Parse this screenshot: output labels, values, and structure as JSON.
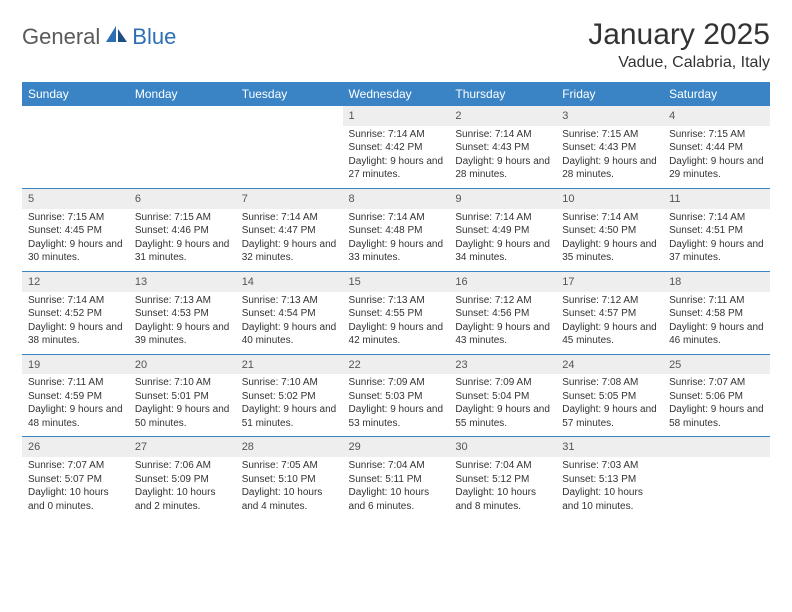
{
  "brand": {
    "part1": "General",
    "part2": "Blue"
  },
  "title": "January 2025",
  "location": "Vadue, Calabria, Italy",
  "colors": {
    "header_bg": "#3a84c5",
    "header_text": "#ffffff",
    "daynum_bg": "#eeeeee",
    "row_border": "#3a84c5",
    "text": "#333333",
    "logo_gray": "#5a5a5a",
    "logo_blue": "#2d6fb5"
  },
  "weekdays": [
    "Sunday",
    "Monday",
    "Tuesday",
    "Wednesday",
    "Thursday",
    "Friday",
    "Saturday"
  ],
  "weeks": [
    [
      null,
      null,
      null,
      {
        "n": "1",
        "sr": "Sunrise: 7:14 AM",
        "ss": "Sunset: 4:42 PM",
        "dl": "Daylight: 9 hours and 27 minutes."
      },
      {
        "n": "2",
        "sr": "Sunrise: 7:14 AM",
        "ss": "Sunset: 4:43 PM",
        "dl": "Daylight: 9 hours and 28 minutes."
      },
      {
        "n": "3",
        "sr": "Sunrise: 7:15 AM",
        "ss": "Sunset: 4:43 PM",
        "dl": "Daylight: 9 hours and 28 minutes."
      },
      {
        "n": "4",
        "sr": "Sunrise: 7:15 AM",
        "ss": "Sunset: 4:44 PM",
        "dl": "Daylight: 9 hours and 29 minutes."
      }
    ],
    [
      {
        "n": "5",
        "sr": "Sunrise: 7:15 AM",
        "ss": "Sunset: 4:45 PM",
        "dl": "Daylight: 9 hours and 30 minutes."
      },
      {
        "n": "6",
        "sr": "Sunrise: 7:15 AM",
        "ss": "Sunset: 4:46 PM",
        "dl": "Daylight: 9 hours and 31 minutes."
      },
      {
        "n": "7",
        "sr": "Sunrise: 7:14 AM",
        "ss": "Sunset: 4:47 PM",
        "dl": "Daylight: 9 hours and 32 minutes."
      },
      {
        "n": "8",
        "sr": "Sunrise: 7:14 AM",
        "ss": "Sunset: 4:48 PM",
        "dl": "Daylight: 9 hours and 33 minutes."
      },
      {
        "n": "9",
        "sr": "Sunrise: 7:14 AM",
        "ss": "Sunset: 4:49 PM",
        "dl": "Daylight: 9 hours and 34 minutes."
      },
      {
        "n": "10",
        "sr": "Sunrise: 7:14 AM",
        "ss": "Sunset: 4:50 PM",
        "dl": "Daylight: 9 hours and 35 minutes."
      },
      {
        "n": "11",
        "sr": "Sunrise: 7:14 AM",
        "ss": "Sunset: 4:51 PM",
        "dl": "Daylight: 9 hours and 37 minutes."
      }
    ],
    [
      {
        "n": "12",
        "sr": "Sunrise: 7:14 AM",
        "ss": "Sunset: 4:52 PM",
        "dl": "Daylight: 9 hours and 38 minutes."
      },
      {
        "n": "13",
        "sr": "Sunrise: 7:13 AM",
        "ss": "Sunset: 4:53 PM",
        "dl": "Daylight: 9 hours and 39 minutes."
      },
      {
        "n": "14",
        "sr": "Sunrise: 7:13 AM",
        "ss": "Sunset: 4:54 PM",
        "dl": "Daylight: 9 hours and 40 minutes."
      },
      {
        "n": "15",
        "sr": "Sunrise: 7:13 AM",
        "ss": "Sunset: 4:55 PM",
        "dl": "Daylight: 9 hours and 42 minutes."
      },
      {
        "n": "16",
        "sr": "Sunrise: 7:12 AM",
        "ss": "Sunset: 4:56 PM",
        "dl": "Daylight: 9 hours and 43 minutes."
      },
      {
        "n": "17",
        "sr": "Sunrise: 7:12 AM",
        "ss": "Sunset: 4:57 PM",
        "dl": "Daylight: 9 hours and 45 minutes."
      },
      {
        "n": "18",
        "sr": "Sunrise: 7:11 AM",
        "ss": "Sunset: 4:58 PM",
        "dl": "Daylight: 9 hours and 46 minutes."
      }
    ],
    [
      {
        "n": "19",
        "sr": "Sunrise: 7:11 AM",
        "ss": "Sunset: 4:59 PM",
        "dl": "Daylight: 9 hours and 48 minutes."
      },
      {
        "n": "20",
        "sr": "Sunrise: 7:10 AM",
        "ss": "Sunset: 5:01 PM",
        "dl": "Daylight: 9 hours and 50 minutes."
      },
      {
        "n": "21",
        "sr": "Sunrise: 7:10 AM",
        "ss": "Sunset: 5:02 PM",
        "dl": "Daylight: 9 hours and 51 minutes."
      },
      {
        "n": "22",
        "sr": "Sunrise: 7:09 AM",
        "ss": "Sunset: 5:03 PM",
        "dl": "Daylight: 9 hours and 53 minutes."
      },
      {
        "n": "23",
        "sr": "Sunrise: 7:09 AM",
        "ss": "Sunset: 5:04 PM",
        "dl": "Daylight: 9 hours and 55 minutes."
      },
      {
        "n": "24",
        "sr": "Sunrise: 7:08 AM",
        "ss": "Sunset: 5:05 PM",
        "dl": "Daylight: 9 hours and 57 minutes."
      },
      {
        "n": "25",
        "sr": "Sunrise: 7:07 AM",
        "ss": "Sunset: 5:06 PM",
        "dl": "Daylight: 9 hours and 58 minutes."
      }
    ],
    [
      {
        "n": "26",
        "sr": "Sunrise: 7:07 AM",
        "ss": "Sunset: 5:07 PM",
        "dl": "Daylight: 10 hours and 0 minutes."
      },
      {
        "n": "27",
        "sr": "Sunrise: 7:06 AM",
        "ss": "Sunset: 5:09 PM",
        "dl": "Daylight: 10 hours and 2 minutes."
      },
      {
        "n": "28",
        "sr": "Sunrise: 7:05 AM",
        "ss": "Sunset: 5:10 PM",
        "dl": "Daylight: 10 hours and 4 minutes."
      },
      {
        "n": "29",
        "sr": "Sunrise: 7:04 AM",
        "ss": "Sunset: 5:11 PM",
        "dl": "Daylight: 10 hours and 6 minutes."
      },
      {
        "n": "30",
        "sr": "Sunrise: 7:04 AM",
        "ss": "Sunset: 5:12 PM",
        "dl": "Daylight: 10 hours and 8 minutes."
      },
      {
        "n": "31",
        "sr": "Sunrise: 7:03 AM",
        "ss": "Sunset: 5:13 PM",
        "dl": "Daylight: 10 hours and 10 minutes."
      },
      null
    ]
  ]
}
